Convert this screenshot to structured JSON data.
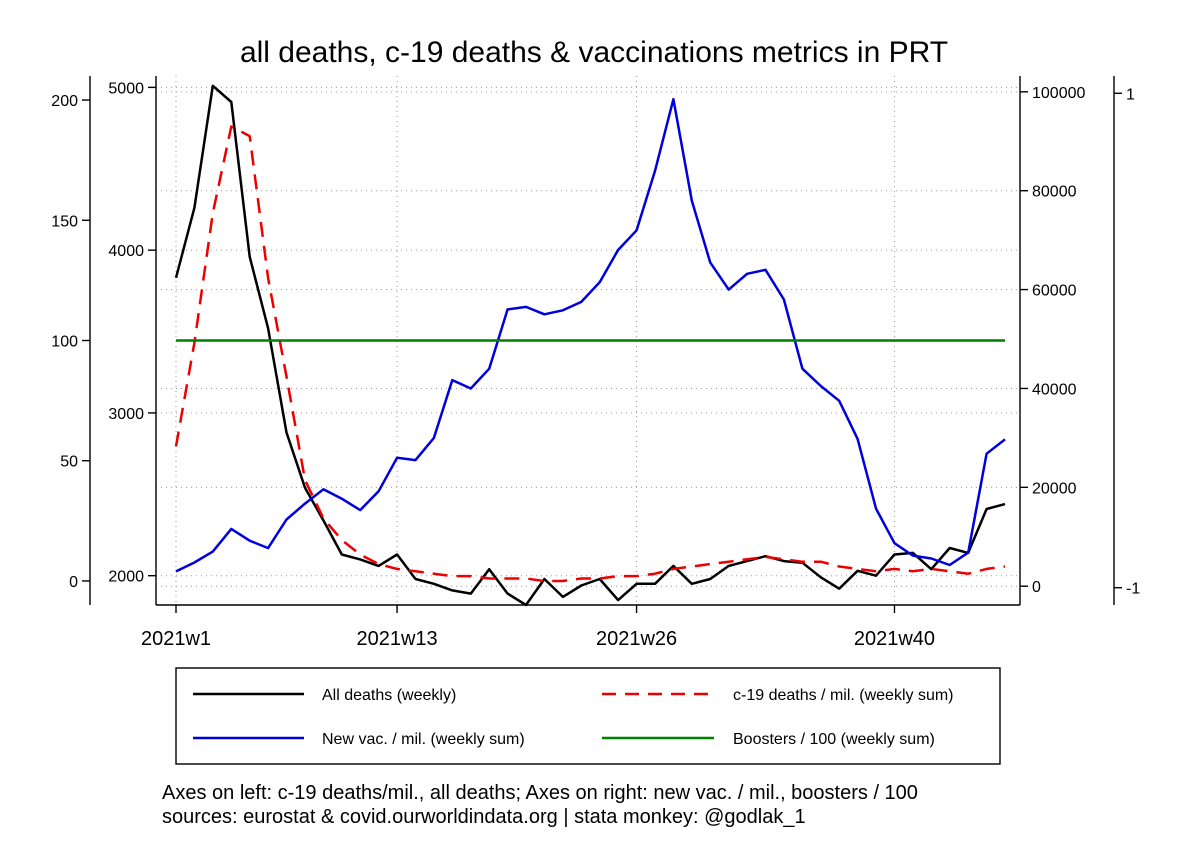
{
  "chart_data": {
    "type": "line",
    "title": "all deaths, c-19 deaths & vaccinations metrics in PRT",
    "grid": true,
    "legend_position": "bottom",
    "x_tick_labels": [
      {
        "week": 1,
        "label": "2021w1"
      },
      {
        "week": 13,
        "label": "2021w13"
      },
      {
        "week": 26,
        "label": "2021w26"
      },
      {
        "week": 40,
        "label": "2021w40"
      }
    ],
    "x_range": [
      1,
      46
    ],
    "axes": {
      "left_outer": {
        "range": [
          -10,
          210
        ],
        "ticks": [
          "0",
          "50",
          "100",
          "150",
          "200"
        ]
      },
      "left_inner": {
        "range": [
          1820,
          5070
        ],
        "ticks": [
          "2000",
          "3000",
          "4000",
          "5000"
        ]
      },
      "right_inner": {
        "range": [
          -3800,
          103200
        ],
        "ticks": [
          "0",
          "20000",
          "40000",
          "60000",
          "80000",
          "100000"
        ]
      },
      "right_outer": {
        "range": [
          -1.07,
          1.07
        ],
        "ticks": [
          "-1",
          "1"
        ]
      }
    },
    "series": [
      {
        "name": "All deaths (weekly)",
        "axis": "left_inner",
        "color": "#000000",
        "dash": "none",
        "weeks": [
          1,
          2,
          3,
          4,
          5,
          6,
          7,
          8,
          9,
          10,
          11,
          12,
          13,
          14,
          15,
          16,
          17,
          18,
          19,
          20,
          21,
          22,
          23,
          24,
          25,
          26,
          27,
          28,
          29,
          30,
          31,
          32,
          33,
          34,
          35,
          36,
          37,
          38,
          39,
          40,
          41,
          42,
          43,
          44,
          45,
          46
        ],
        "values": [
          3830,
          4260,
          5010,
          4910,
          3960,
          3520,
          2880,
          2540,
          2340,
          2130,
          2100,
          2060,
          2130,
          1980,
          1950,
          1910,
          1890,
          2040,
          1890,
          1820,
          1980,
          1870,
          1940,
          1980,
          1850,
          1950,
          1950,
          2060,
          1950,
          1980,
          2060,
          2090,
          2120,
          2090,
          2080,
          1990,
          1920,
          2030,
          2000,
          2130,
          2140,
          2040,
          2170,
          2140,
          2410,
          2440
        ]
      },
      {
        "name": "c-19 deaths / mil. (weekly sum)",
        "axis": "left_outer",
        "color": "#ee0000",
        "dash": "long",
        "weeks": [
          1,
          2,
          3,
          4,
          5,
          6,
          7,
          8,
          9,
          10,
          11,
          12,
          13,
          14,
          15,
          16,
          17,
          18,
          19,
          20,
          21,
          22,
          23,
          24,
          25,
          26,
          27,
          28,
          29,
          30,
          31,
          32,
          33,
          34,
          35,
          36,
          37,
          38,
          39,
          40,
          41,
          42,
          43,
          44,
          45,
          46
        ],
        "values": [
          56,
          99,
          153,
          189,
          185,
          126,
          85,
          42,
          26,
          17,
          11,
          7,
          5,
          4,
          3,
          2,
          2,
          1,
          1,
          1,
          0,
          0,
          1,
          1,
          2,
          2,
          3,
          5,
          6,
          7,
          8,
          9,
          10,
          9,
          8,
          8,
          6,
          5,
          4,
          5,
          4,
          5,
          4,
          3,
          5,
          6
        ]
      },
      {
        "name": "New vac. / mil. (weekly sum)",
        "axis": "right_inner",
        "color": "#0000dd",
        "dash": "none",
        "weeks": [
          1,
          2,
          3,
          4,
          5,
          6,
          7,
          8,
          9,
          10,
          11,
          12,
          13,
          14,
          15,
          16,
          17,
          18,
          19,
          20,
          21,
          22,
          23,
          24,
          25,
          26,
          27,
          28,
          29,
          30,
          31,
          32,
          33,
          34,
          35,
          36,
          37,
          38,
          39,
          40,
          41,
          42,
          43,
          44,
          45,
          46
        ],
        "values": [
          3000,
          4800,
          7000,
          11600,
          9200,
          7700,
          13500,
          16700,
          19600,
          17700,
          15400,
          19200,
          26000,
          25500,
          30000,
          41700,
          40000,
          44000,
          56000,
          56500,
          55000,
          55800,
          57500,
          61500,
          68000,
          72000,
          84000,
          98500,
          78000,
          65500,
          60000,
          63200,
          64000,
          58000,
          44000,
          40500,
          37500,
          29800,
          15700,
          8700,
          6200,
          5600,
          4300,
          6800,
          26800,
          29700
        ]
      },
      {
        "name": "Boosters / 100 (weekly sum)",
        "axis": "right_outer",
        "color": "#008000",
        "dash": "none",
        "weeks": [
          1,
          46
        ],
        "values": [
          0,
          0
        ]
      }
    ],
    "notes": [
      "Axes on left: c-19 deaths/mil., all deaths; Axes on right: new vac. / mil., boosters / 100",
      "sources: eurostat & covid.ourworldindata.org | stata monkey: @godlak_1"
    ]
  }
}
